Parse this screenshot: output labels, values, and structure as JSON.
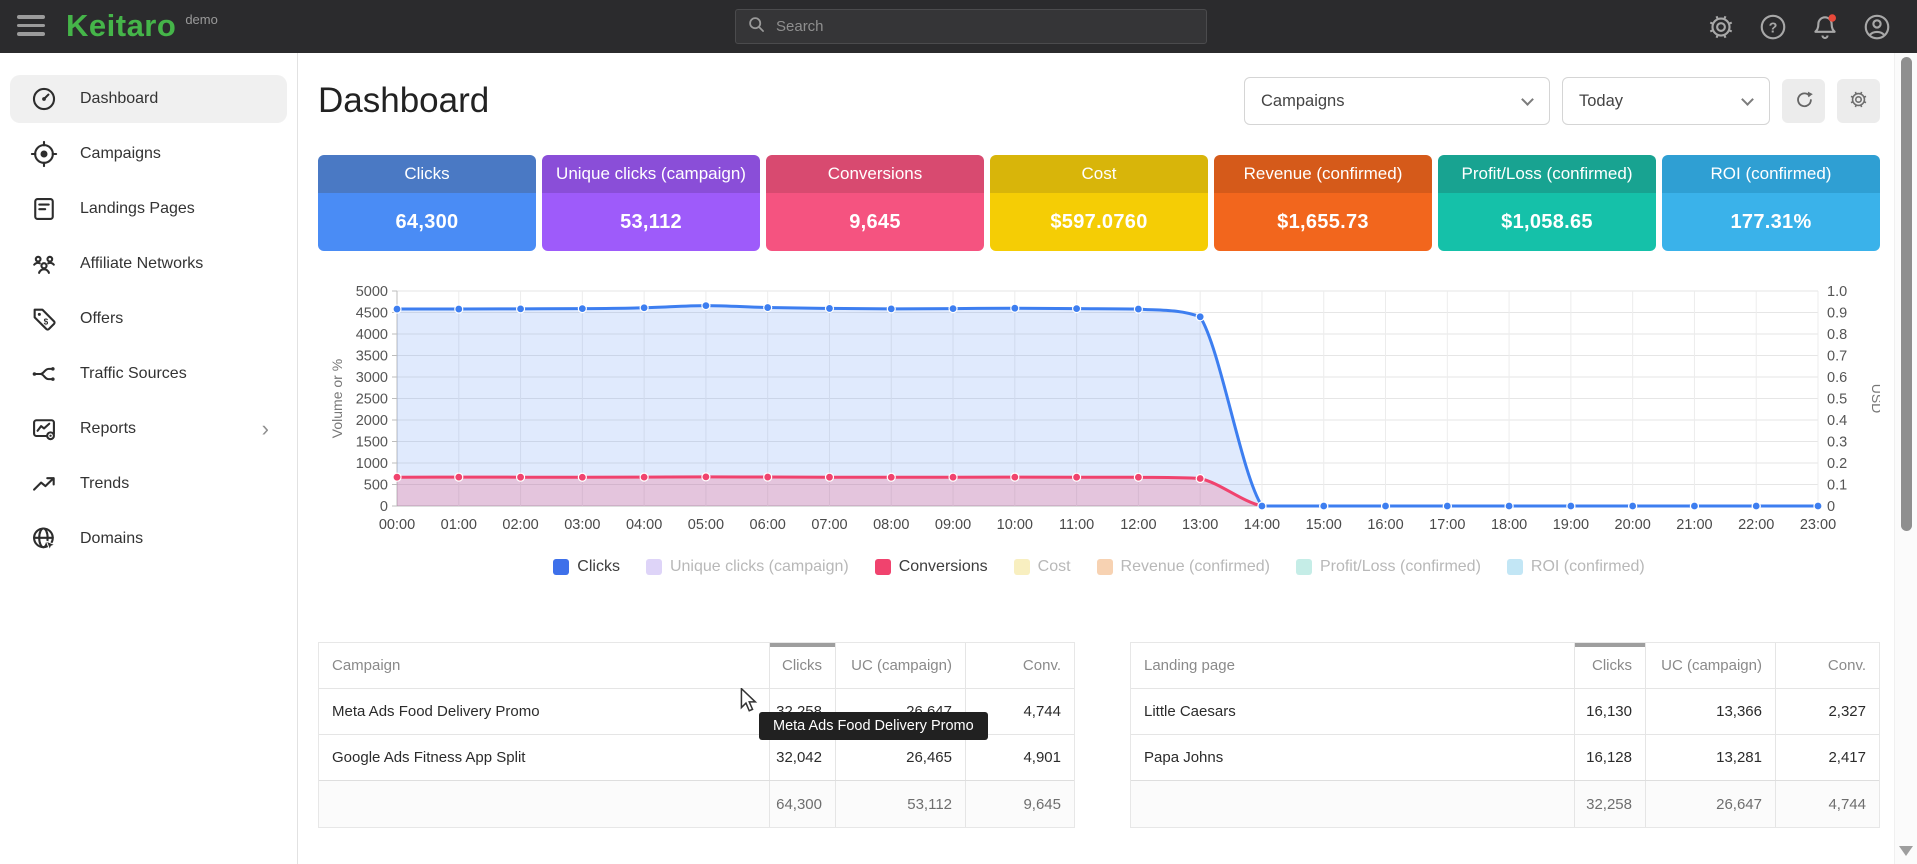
{
  "topbar": {
    "brand": "Keitaro",
    "brand_suffix": "demo",
    "search_placeholder": "Search"
  },
  "sidebar": {
    "items": [
      {
        "label": "Dashboard",
        "icon": "dashboard-icon",
        "active": true
      },
      {
        "label": "Campaigns",
        "icon": "campaigns-icon",
        "active": false
      },
      {
        "label": "Landings Pages",
        "icon": "landings-pages-icon",
        "active": false
      },
      {
        "label": "Affiliate Networks",
        "icon": "affiliate-networks-icon",
        "active": false
      },
      {
        "label": "Offers",
        "icon": "offers-icon",
        "active": false
      },
      {
        "label": "Traffic Sources",
        "icon": "traffic-sources-icon",
        "active": false
      },
      {
        "label": "Reports",
        "icon": "reports-icon",
        "active": false,
        "chevron": true
      },
      {
        "label": "Trends",
        "icon": "trends-icon",
        "active": false
      },
      {
        "label": "Domains",
        "icon": "domains-icon",
        "active": false
      }
    ]
  },
  "header": {
    "title": "Dashboard",
    "campaigns_filter": "Campaigns",
    "date_filter": "Today"
  },
  "stat_cards": [
    {
      "label": "Clicks",
      "value": "64,300",
      "header_color": "#4a79c4",
      "body_color": "#4a8cf5"
    },
    {
      "label": "Unique clicks (campaign)",
      "value": "53,112",
      "header_color": "#8a4ed8",
      "body_color": "#9e5bfa"
    },
    {
      "label": "Conversions",
      "value": "9,645",
      "header_color": "#d84a70",
      "body_color": "#f55380"
    },
    {
      "label": "Cost",
      "value": "$597.0760",
      "header_color": "#d8b50a",
      "body_color": "#f5cd05"
    },
    {
      "label": "Revenue (confirmed)",
      "value": "$1,655.73",
      "header_color": "#d55a1a",
      "body_color": "#f2661d"
    },
    {
      "label": "Profit/Loss (confirmed)",
      "value": "$1,058.65",
      "header_color": "#18a391",
      "body_color": "#15c1a9"
    },
    {
      "label": "ROI (confirmed)",
      "value": "177.31%",
      "header_color": "#2f9fd3",
      "body_color": "#3ab2ea"
    }
  ],
  "chart_data": {
    "type": "line",
    "x": [
      "00:00",
      "01:00",
      "02:00",
      "03:00",
      "04:00",
      "05:00",
      "06:00",
      "07:00",
      "08:00",
      "09:00",
      "10:00",
      "11:00",
      "12:00",
      "13:00",
      "14:00",
      "15:00",
      "16:00",
      "17:00",
      "18:00",
      "19:00",
      "20:00",
      "21:00",
      "22:00",
      "23:00"
    ],
    "ylabel_left": "Volume or %",
    "ylabel_right": "USD",
    "ylim_left": [
      0,
      5000
    ],
    "yticks_left": [
      0,
      500,
      1000,
      1500,
      2000,
      2500,
      3000,
      3500,
      4000,
      4500,
      5000
    ],
    "ylim_right": [
      0,
      1
    ],
    "yticks_right": [
      "0",
      "0.1",
      "0.2",
      "0.3",
      "0.4",
      "0.5",
      "0.6",
      "0.7",
      "0.8",
      "0.9",
      "1.0"
    ],
    "grid": true,
    "legend_position": "bottom",
    "series": [
      {
        "name": "Clicks",
        "color": "#3d7ef0",
        "fill": "rgba(61,126,240,0.16)",
        "values": [
          4580,
          4580,
          4585,
          4590,
          4610,
          4660,
          4615,
          4595,
          4585,
          4590,
          4600,
          4590,
          4580,
          4400,
          0,
          0,
          0,
          0,
          0,
          0,
          0,
          0,
          0,
          0
        ]
      },
      {
        "name": "Conversions",
        "color": "#f0436e",
        "fill": "rgba(240,67,110,0.22)",
        "values": [
          670,
          671,
          670,
          668,
          672,
          678,
          673,
          670,
          668,
          670,
          672,
          670,
          668,
          640,
          0,
          0,
          0,
          0,
          0,
          0,
          0,
          0,
          0,
          0
        ]
      }
    ],
    "legend": [
      {
        "label": "Clicks",
        "color": "#3e70ea",
        "active": true
      },
      {
        "label": "Unique clicks (campaign)",
        "color": "#ded4f8",
        "active": false
      },
      {
        "label": "Conversions",
        "color": "#f0436e",
        "active": true
      },
      {
        "label": "Cost",
        "color": "#f8efc0",
        "active": false
      },
      {
        "label": "Revenue (confirmed)",
        "color": "#f7d2b2",
        "active": false
      },
      {
        "label": "Profit/Loss (confirmed)",
        "color": "#c5ede7",
        "active": false
      },
      {
        "label": "ROI (confirmed)",
        "color": "#c2e6f5",
        "active": false
      }
    ]
  },
  "campaigns_table": {
    "columns": [
      "Campaign",
      "Clicks",
      "UC (campaign)",
      "Conv."
    ],
    "sorted_column": "Clicks",
    "rows": [
      {
        "name": "Meta Ads Food Delivery Promo",
        "clicks": "32,258",
        "uc": "26,647",
        "conv": "4,744"
      },
      {
        "name": "Google Ads Fitness App Split",
        "clicks": "32,042",
        "uc": "26,465",
        "conv": "4,901"
      }
    ],
    "totals": {
      "clicks": "64,300",
      "uc": "53,112",
      "conv": "9,645"
    }
  },
  "landings_table": {
    "columns": [
      "Landing page",
      "Clicks",
      "UC (campaign)",
      "Conv."
    ],
    "sorted_column": "Clicks",
    "rows": [
      {
        "name": "Little Caesars",
        "clicks": "16,130",
        "uc": "13,366",
        "conv": "2,327"
      },
      {
        "name": "Papa Johns",
        "clicks": "16,128",
        "uc": "13,281",
        "conv": "2,417"
      }
    ],
    "totals": {
      "clicks": "32,258",
      "uc": "26,647",
      "conv": "4,744"
    }
  },
  "tooltip": {
    "text": "Meta Ads Food Delivery Promo"
  }
}
